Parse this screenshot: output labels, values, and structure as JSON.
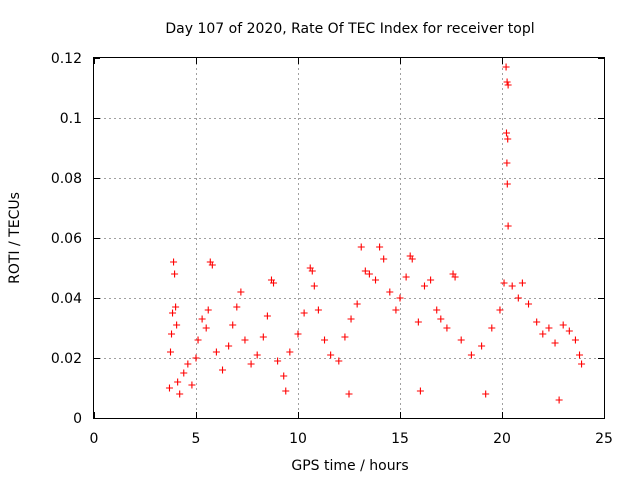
{
  "chart_data": {
    "type": "scatter",
    "title": "Day 107 of 2020, Rate Of TEC Index for receiver topl",
    "xlabel": "GPS time / hours",
    "ylabel": "ROTI / TECUs",
    "xlim": [
      0,
      25
    ],
    "ylim": [
      0,
      0.12
    ],
    "xticks": [
      0,
      5,
      10,
      15,
      20,
      25
    ],
    "xtick_labels": [
      "0",
      "5",
      "10",
      "15",
      "20",
      "25"
    ],
    "yticks": [
      0,
      0.02,
      0.04,
      0.06,
      0.08,
      0.1,
      0.12
    ],
    "ytick_labels": [
      "0",
      "0.02",
      "0.04",
      "0.06",
      "0.08",
      "0.1",
      "0.12"
    ],
    "grid": true,
    "marker": "+",
    "color": "#ff0000",
    "series": [
      {
        "name": "ROTI",
        "points": [
          [
            3.7,
            0.01
          ],
          [
            3.75,
            0.022
          ],
          [
            3.8,
            0.028
          ],
          [
            3.85,
            0.035
          ],
          [
            3.9,
            0.052
          ],
          [
            3.95,
            0.048
          ],
          [
            4.0,
            0.037
          ],
          [
            4.05,
            0.031
          ],
          [
            4.1,
            0.012
          ],
          [
            4.2,
            0.008
          ],
          [
            4.4,
            0.015
          ],
          [
            4.6,
            0.018
          ],
          [
            4.8,
            0.011
          ],
          [
            5.0,
            0.02
          ],
          [
            5.1,
            0.026
          ],
          [
            5.3,
            0.033
          ],
          [
            5.5,
            0.03
          ],
          [
            5.6,
            0.036
          ],
          [
            5.7,
            0.052
          ],
          [
            5.8,
            0.051
          ],
          [
            6.0,
            0.022
          ],
          [
            6.3,
            0.016
          ],
          [
            6.6,
            0.024
          ],
          [
            6.8,
            0.031
          ],
          [
            7.0,
            0.037
          ],
          [
            7.2,
            0.042
          ],
          [
            7.4,
            0.026
          ],
          [
            7.7,
            0.018
          ],
          [
            8.0,
            0.021
          ],
          [
            8.3,
            0.027
          ],
          [
            8.5,
            0.034
          ],
          [
            8.7,
            0.046
          ],
          [
            8.8,
            0.045
          ],
          [
            9.0,
            0.019
          ],
          [
            9.3,
            0.014
          ],
          [
            9.6,
            0.022
          ],
          [
            10.0,
            0.028
          ],
          [
            10.3,
            0.035
          ],
          [
            10.6,
            0.05
          ],
          [
            10.7,
            0.049
          ],
          [
            10.8,
            0.044
          ],
          [
            11.0,
            0.036
          ],
          [
            11.3,
            0.026
          ],
          [
            11.6,
            0.021
          ],
          [
            12.0,
            0.019
          ],
          [
            12.3,
            0.027
          ],
          [
            12.6,
            0.033
          ],
          [
            12.9,
            0.038
          ],
          [
            13.1,
            0.057
          ],
          [
            13.3,
            0.049
          ],
          [
            13.5,
            0.048
          ],
          [
            13.8,
            0.046
          ],
          [
            14.0,
            0.057
          ],
          [
            14.2,
            0.053
          ],
          [
            14.5,
            0.042
          ],
          [
            14.8,
            0.036
          ],
          [
            15.0,
            0.04
          ],
          [
            15.3,
            0.047
          ],
          [
            15.5,
            0.054
          ],
          [
            15.6,
            0.053
          ],
          [
            15.9,
            0.032
          ],
          [
            16.2,
            0.044
          ],
          [
            16.5,
            0.046
          ],
          [
            16.8,
            0.036
          ],
          [
            17.0,
            0.033
          ],
          [
            17.3,
            0.03
          ],
          [
            17.6,
            0.048
          ],
          [
            17.7,
            0.047
          ],
          [
            18.0,
            0.026
          ],
          [
            18.5,
            0.021
          ],
          [
            19.0,
            0.024
          ],
          [
            19.5,
            0.03
          ],
          [
            19.9,
            0.036
          ],
          [
            20.1,
            0.045
          ],
          [
            20.2,
            0.117
          ],
          [
            20.25,
            0.112
          ],
          [
            20.3,
            0.111
          ],
          [
            20.22,
            0.095
          ],
          [
            20.28,
            0.093
          ],
          [
            20.24,
            0.085
          ],
          [
            20.26,
            0.078
          ],
          [
            20.3,
            0.064
          ],
          [
            20.5,
            0.044
          ],
          [
            20.8,
            0.04
          ],
          [
            21.0,
            0.045
          ],
          [
            21.3,
            0.038
          ],
          [
            21.7,
            0.032
          ],
          [
            22.0,
            0.028
          ],
          [
            22.3,
            0.03
          ],
          [
            22.6,
            0.025
          ],
          [
            23.0,
            0.031
          ],
          [
            23.3,
            0.029
          ],
          [
            23.6,
            0.026
          ],
          [
            23.8,
            0.021
          ],
          [
            23.9,
            0.018
          ],
          [
            12.5,
            0.008
          ],
          [
            16.0,
            0.009
          ],
          [
            19.2,
            0.008
          ],
          [
            22.8,
            0.006
          ],
          [
            9.4,
            0.009
          ]
        ]
      }
    ]
  }
}
